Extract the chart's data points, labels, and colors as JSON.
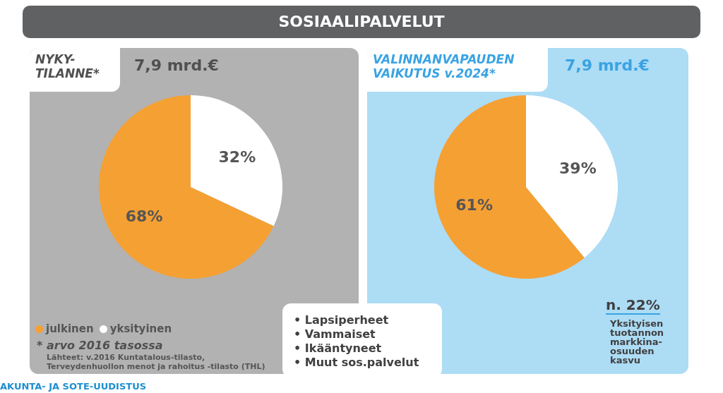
{
  "chart_data": [
    {
      "type": "pie",
      "title": "NYKY-\nTILANNE*",
      "subtitle": "7,9 mrd.€",
      "categories": [
        "julkinen",
        "yksityinen"
      ],
      "values": [
        68,
        32
      ],
      "colors": [
        "#f5a033",
        "#ffffff"
      ],
      "value_labels": [
        "68%",
        "32%"
      ],
      "legend": "bottom left",
      "annotations": [
        "SOSIAALIPALVELUT",
        "* arvo 2016 tasossa",
        "Lähteet: v.2016 Kuntatalous-tilasto,\nTerveydenhuollon menot ja rahoitus -tilasto (THL)",
        "AKUNTA- JA SOTE-UUDISTUS"
      ]
    },
    {
      "type": "pie",
      "title": "VALINNANVAPAUDEN\nVAIKUTUS v.2024*",
      "subtitle": "7,9 mrd.€",
      "categories": [
        null,
        null
      ],
      "values": [
        61,
        39
      ],
      "colors": [
        "#f5a033",
        "#ffffff"
      ],
      "value_labels": [
        "61%",
        "39%"
      ],
      "annotations": [
        "n. 22%",
        "Yksityisen\ntuotannon\nmarkkina-\nosuuden\nkasvu",
        "• Lapsiperheet",
        "• Vammaiset",
        "• Ikääntyneet",
        "• Muut sos.palvelut"
      ]
    }
  ]
}
